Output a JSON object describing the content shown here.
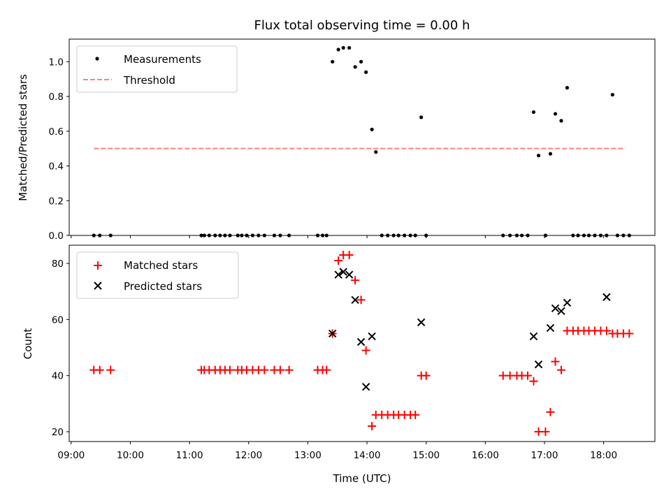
{
  "chart_data": [
    {
      "type": "scatter",
      "title": "Flux total observing time = 0.00 h",
      "xlabel": "",
      "ylabel": "Matched/Predicted stars",
      "ylim": [
        0,
        1.13
      ],
      "yticks": [
        "0.0",
        "0.2",
        "0.4",
        "0.6",
        "0.8",
        "1.0"
      ],
      "legend_position": "top-left",
      "grid": false,
      "series": [
        {
          "name": "Measurements",
          "color": "#000000",
          "marker": "dot",
          "x": [
            "09:23",
            "09:29",
            "09:40",
            "11:12",
            "11:15",
            "11:20",
            "11:26",
            "11:31",
            "11:36",
            "11:41",
            "11:49",
            "11:53",
            "11:58",
            "12:04",
            "12:10",
            "12:16",
            "12:26",
            "12:32",
            "12:41",
            "13:10",
            "13:15",
            "13:19",
            "13:25",
            "13:31",
            "13:36",
            "13:42",
            "13:48",
            "13:54",
            "13:59",
            "14:05",
            "14:09",
            "14:15",
            "14:21",
            "14:27",
            "14:32",
            "14:38",
            "14:44",
            "14:49",
            "14:55",
            "15:00",
            "16:18",
            "16:25",
            "16:32",
            "16:37",
            "16:43",
            "16:49",
            "16:54",
            "17:01",
            "17:06",
            "17:11",
            "17:17",
            "17:23",
            "17:29",
            "17:34",
            "17:40",
            "17:45",
            "17:51",
            "17:57",
            "18:03",
            "18:09",
            "18:14",
            "18:20",
            "18:26"
          ],
          "y": [
            0,
            0,
            0,
            0,
            0,
            0,
            0,
            0,
            0,
            0,
            0,
            0,
            0,
            0,
            0,
            0,
            0,
            0,
            0,
            0,
            0,
            0,
            1.0,
            1.07,
            1.08,
            1.08,
            0.97,
            1.0,
            0.94,
            0.61,
            0.48,
            0,
            0,
            0,
            0,
            0,
            0,
            0,
            0.68,
            0,
            0,
            0,
            0,
            0,
            0,
            0.71,
            0.46,
            0,
            0.47,
            0.7,
            0.66,
            0.85,
            0,
            0,
            0,
            0,
            0,
            0,
            0,
            0.81,
            0,
            0,
            0
          ]
        },
        {
          "name": "Threshold",
          "color": "#ff7f7f",
          "style": "dashed",
          "x": [
            "09:23",
            "18:22"
          ],
          "y": [
            0.5,
            0.5
          ]
        }
      ]
    },
    {
      "type": "scatter",
      "title": "",
      "xlabel": "Time (UTC)",
      "ylabel": "Count",
      "ylim": [
        16.5,
        86.5
      ],
      "yticks": [
        "20",
        "40",
        "60",
        "80"
      ],
      "xticks": [
        "09:00",
        "10:00",
        "11:00",
        "12:00",
        "13:00",
        "14:00",
        "15:00",
        "16:00",
        "17:00",
        "18:00"
      ],
      "legend_position": "top-left",
      "grid": false,
      "series": [
        {
          "name": "Matched stars",
          "color": "#ff0000",
          "marker": "plus",
          "x": [
            "09:23",
            "09:29",
            "09:40",
            "11:12",
            "11:15",
            "11:20",
            "11:26",
            "11:31",
            "11:36",
            "11:41",
            "11:49",
            "11:53",
            "11:58",
            "12:04",
            "12:10",
            "12:16",
            "12:26",
            "12:32",
            "12:41",
            "13:10",
            "13:15",
            "13:19",
            "13:25",
            "13:31",
            "13:36",
            "13:42",
            "13:48",
            "13:54",
            "13:59",
            "14:05",
            "14:09",
            "14:15",
            "14:21",
            "14:27",
            "14:32",
            "14:38",
            "14:44",
            "14:49",
            "14:55",
            "15:00",
            "16:18",
            "16:25",
            "16:32",
            "16:37",
            "16:43",
            "16:49",
            "16:54",
            "17:01",
            "17:06",
            "17:11",
            "17:17",
            "17:23",
            "17:29",
            "17:34",
            "17:40",
            "17:45",
            "17:51",
            "17:57",
            "18:03",
            "18:09",
            "18:14",
            "18:20",
            "18:26"
          ],
          "y": [
            42,
            42,
            42,
            42,
            42,
            42,
            42,
            42,
            42,
            42,
            42,
            42,
            42,
            42,
            42,
            42,
            42,
            42,
            42,
            42,
            42,
            42,
            55,
            81,
            83,
            83,
            74,
            67,
            49,
            22,
            26,
            26,
            26,
            26,
            26,
            26,
            26,
            26,
            40,
            40,
            40,
            40,
            40,
            40,
            40,
            38,
            20,
            20,
            27,
            45,
            42,
            56,
            56,
            56,
            56,
            56,
            56,
            56,
            56,
            55,
            55,
            55,
            55
          ]
        },
        {
          "name": "Predicted stars",
          "color": "#000000",
          "marker": "x",
          "x": [
            "13:25",
            "13:31",
            "13:36",
            "13:42",
            "13:48",
            "13:54",
            "13:59",
            "14:05",
            "14:55",
            "16:49",
            "16:54",
            "17:06",
            "17:11",
            "17:17",
            "17:23",
            "18:03"
          ],
          "y": [
            55,
            76,
            77,
            76,
            67,
            52,
            36,
            54,
            59,
            54,
            44,
            57,
            64,
            63,
            66,
            68
          ]
        }
      ]
    }
  ]
}
